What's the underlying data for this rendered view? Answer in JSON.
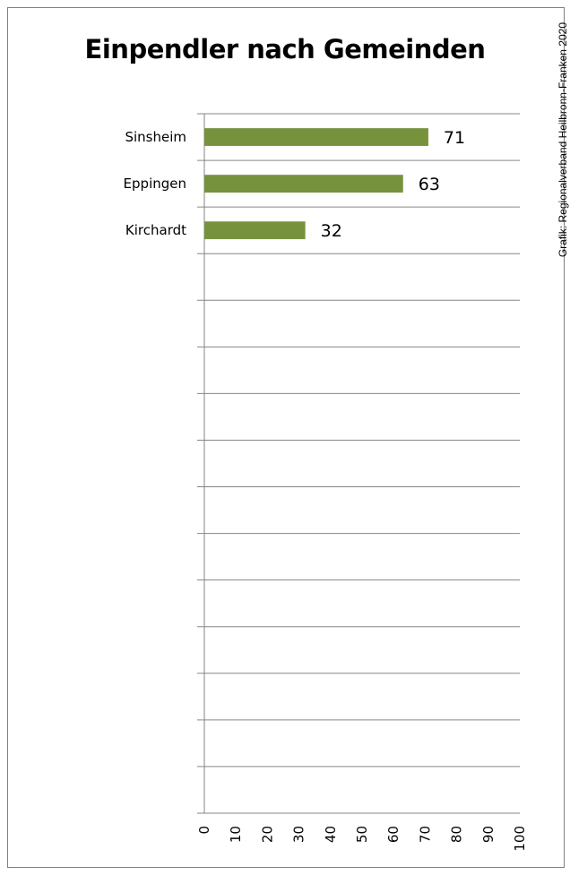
{
  "chart_data": {
    "type": "bar",
    "orientation": "horizontal",
    "title": "Einpendler nach Gemeinden",
    "source": "Grafik: Regionalverband Heilbronn-Franken 2020",
    "categories": [
      "Sinsheim",
      "Eppingen",
      "Kirchardt",
      "",
      "",
      "",
      "",
      "",
      "",
      "",
      "",
      "",
      "",
      "",
      ""
    ],
    "values": [
      71,
      63,
      32,
      null,
      null,
      null,
      null,
      null,
      null,
      null,
      null,
      null,
      null,
      null,
      null
    ],
    "xlim": [
      0,
      100
    ],
    "x_ticks": [
      0,
      10,
      20,
      30,
      40,
      50,
      60,
      70,
      80,
      90,
      100
    ],
    "grid": "horizontal",
    "colors": {
      "bar": "#76923c",
      "grid": "#868686",
      "border": "#7f7f7f"
    }
  }
}
